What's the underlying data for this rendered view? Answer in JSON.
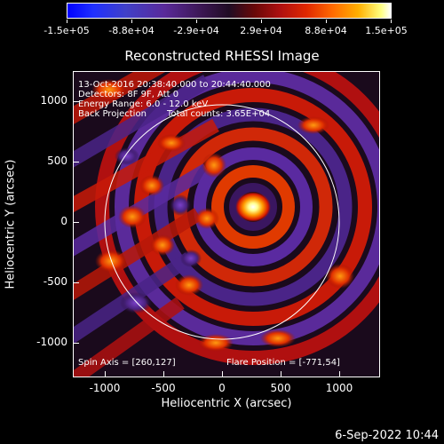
{
  "title": "Reconstructed RHESSI Image",
  "colorbar": {
    "labels": [
      "-1.5e+05",
      "-8.8e+04",
      "-2.9e+04",
      "2.9e+04",
      "8.8e+04",
      "1.5e+05"
    ]
  },
  "annotations": {
    "time_range": "13-Oct-2016 20:38:40.000 to 20:44:40.000",
    "detectors": "Detectors: 8F 9F, Att 0",
    "energy": "Energy Range: 6.0 - 12.0 keV",
    "method": "Back Projection",
    "counts": "Total counts: 3.65E+04",
    "spin_axis": "Spin Axis = [260,127]",
    "flare_position": "Flare Position = [-771,54]"
  },
  "axes": {
    "xlabel": "Heliocentric X (arcsec)",
    "ylabel": "Heliocentric Y (arcsec)",
    "xticks": [
      "-1000",
      "-500",
      "0",
      "500",
      "1000"
    ],
    "yticks": [
      "1000",
      "500",
      "0",
      "-500",
      "-1000"
    ]
  },
  "footer": {
    "date": "6-Sep-2022 10:44"
  },
  "colors": {
    "background": "#000000",
    "text": "#ffffff"
  }
}
